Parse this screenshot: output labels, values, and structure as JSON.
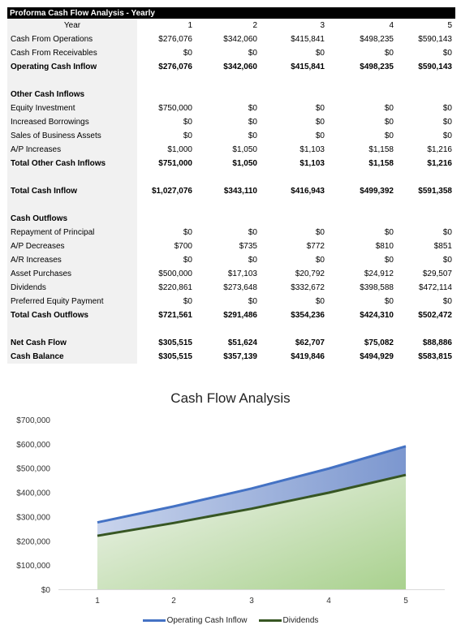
{
  "table": {
    "title": "Proforma Cash Flow Analysis - Yearly",
    "year_label": "Year",
    "years": [
      "1",
      "2",
      "3",
      "4",
      "5"
    ],
    "rows": [
      {
        "label": "Cash From Operations",
        "values": [
          "$276,076",
          "$342,060",
          "$415,841",
          "$498,235",
          "$590,143"
        ],
        "bold": false
      },
      {
        "label": "Cash From Receivables",
        "values": [
          "$0",
          "$0",
          "$0",
          "$0",
          "$0"
        ],
        "bold": false
      },
      {
        "label": "Operating Cash Inflow",
        "values": [
          "$276,076",
          "$342,060",
          "$415,841",
          "$498,235",
          "$590,143"
        ],
        "bold": true
      },
      {
        "spacer": true
      },
      {
        "label": "Other Cash Inflows",
        "values": [
          "",
          "",
          "",
          "",
          ""
        ],
        "bold": true
      },
      {
        "label": "Equity Investment",
        "values": [
          "$750,000",
          "$0",
          "$0",
          "$0",
          "$0"
        ],
        "bold": false
      },
      {
        "label": "Increased Borrowings",
        "values": [
          "$0",
          "$0",
          "$0",
          "$0",
          "$0"
        ],
        "bold": false
      },
      {
        "label": "Sales of Business Assets",
        "values": [
          "$0",
          "$0",
          "$0",
          "$0",
          "$0"
        ],
        "bold": false
      },
      {
        "label": "A/P Increases",
        "values": [
          "$1,000",
          "$1,050",
          "$1,103",
          "$1,158",
          "$1,216"
        ],
        "bold": false
      },
      {
        "label": "Total Other Cash Inflows",
        "values": [
          "$751,000",
          "$1,050",
          "$1,103",
          "$1,158",
          "$1,216"
        ],
        "bold": true
      },
      {
        "spacer": true
      },
      {
        "label": "Total Cash Inflow",
        "values": [
          "$1,027,076",
          "$343,110",
          "$416,943",
          "$499,392",
          "$591,358"
        ],
        "bold": true
      },
      {
        "spacer": true
      },
      {
        "label": "Cash Outflows",
        "values": [
          "",
          "",
          "",
          "",
          ""
        ],
        "bold": true
      },
      {
        "label": "Repayment of Principal",
        "values": [
          "$0",
          "$0",
          "$0",
          "$0",
          "$0"
        ],
        "bold": false
      },
      {
        "label": "A/P Decreases",
        "values": [
          "$700",
          "$735",
          "$772",
          "$810",
          "$851"
        ],
        "bold": false
      },
      {
        "label": "A/R Increases",
        "values": [
          "$0",
          "$0",
          "$0",
          "$0",
          "$0"
        ],
        "bold": false
      },
      {
        "label": "Asset Purchases",
        "values": [
          "$500,000",
          "$17,103",
          "$20,792",
          "$24,912",
          "$29,507"
        ],
        "bold": false
      },
      {
        "label": "Dividends",
        "values": [
          "$220,861",
          "$273,648",
          "$332,672",
          "$398,588",
          "$472,114"
        ],
        "bold": false
      },
      {
        "label": "Preferred Equity Payment",
        "values": [
          "$0",
          "$0",
          "$0",
          "$0",
          "$0"
        ],
        "bold": false
      },
      {
        "label": "Total Cash Outflows",
        "values": [
          "$721,561",
          "$291,486",
          "$354,236",
          "$424,310",
          "$502,472"
        ],
        "bold": true
      },
      {
        "spacer": true
      },
      {
        "label": "Net Cash Flow",
        "values": [
          "$305,515",
          "$51,624",
          "$62,707",
          "$75,082",
          "$88,886"
        ],
        "bold": true
      },
      {
        "label": "Cash Balance",
        "values": [
          "$305,515",
          "$357,139",
          "$419,846",
          "$494,929",
          "$583,815"
        ],
        "bold": true
      }
    ]
  },
  "chart_data": {
    "type": "area",
    "title": "Cash Flow Analysis",
    "x": [
      1,
      2,
      3,
      4,
      5
    ],
    "x_tick_labels": [
      "1",
      "2",
      "3",
      "4",
      "5"
    ],
    "ylim": [
      0,
      700000
    ],
    "y_ticks": [
      0,
      100000,
      200000,
      300000,
      400000,
      500000,
      600000,
      700000
    ],
    "y_tick_labels": [
      "$0",
      "$100,000",
      "$200,000",
      "$300,000",
      "$400,000",
      "$500,000",
      "$600,000",
      "$700,000"
    ],
    "grid": false,
    "legend_position": "bottom",
    "series": [
      {
        "name": "Operating Cash Inflow",
        "values": [
          276076,
          342060,
          415841,
          498235,
          590143
        ],
        "color": "#4472c4"
      },
      {
        "name": "Dividends",
        "values": [
          220861,
          273648,
          332672,
          398588,
          472114
        ],
        "color": "#375623"
      }
    ]
  }
}
